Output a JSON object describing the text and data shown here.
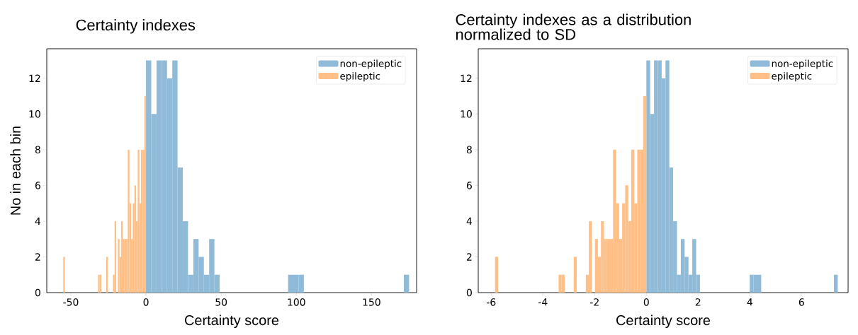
{
  "chart_data": [
    {
      "type": "histogram",
      "title": "Certainty indexes",
      "xlabel": "Certainty score",
      "ylabel": "No in each bin",
      "bins": [
        -55,
        -53.9,
        -31.9,
        -30.8,
        -29.7,
        -26.4,
        -25.3,
        -22,
        -20.9,
        -19.8,
        -18.7,
        -17.6,
        -16.5,
        -15.4,
        -14.3,
        -13.2,
        -12.1,
        -11,
        -9.9,
        -8.8,
        -7.7,
        -6.6,
        -5.5,
        -4.4,
        -3.3,
        -2.2,
        -1.1,
        0,
        3.5,
        7,
        10.5,
        14,
        17.5,
        21,
        24.5,
        28,
        31.5,
        35,
        38.5,
        42,
        45.5,
        49,
        94.5,
        98,
        101.5,
        105,
        171.5,
        175
      ],
      "series": [
        {
          "name": "non-epileptic",
          "color": "#8fbbd9",
          "values": [
            null,
            null,
            null,
            null,
            null,
            null,
            null,
            null,
            null,
            null,
            null,
            null,
            null,
            null,
            null,
            null,
            null,
            null,
            null,
            null,
            null,
            null,
            null,
            null,
            null,
            null,
            null,
            13,
            10,
            13,
            13,
            12,
            13,
            7,
            4,
            1,
            3,
            2,
            1,
            3,
            1,
            0,
            1,
            1,
            1,
            0,
            1
          ]
        },
        {
          "name": "epileptic",
          "color": "#ffbf86",
          "values": [
            2,
            0,
            1,
            1,
            0,
            2,
            0,
            1,
            4,
            0,
            3,
            2,
            4,
            3,
            3,
            3,
            8,
            5,
            3,
            5,
            6,
            4,
            8,
            5,
            8,
            8,
            11,
            null,
            null,
            null,
            null,
            null,
            null,
            null,
            null,
            null,
            null,
            null,
            null,
            null,
            null,
            null,
            null,
            null,
            null,
            null,
            null
          ]
        }
      ],
      "xlim": [
        -66,
        180
      ],
      "ylim": [
        0,
        13.65
      ],
      "xticks": [
        -50,
        0,
        50,
        100,
        150
      ],
      "yticks": [
        0,
        2,
        4,
        6,
        8,
        10,
        12
      ],
      "legend": "top right",
      "grid": false
    },
    {
      "type": "histogram",
      "title": "Certainty indexes as a distribution normalized to SD",
      "xlabel": "Certainty score",
      "bins": [
        -5.85,
        -5.733,
        -3.393,
        -3.276,
        -3.159,
        -2.808,
        -2.691,
        -2.34,
        -2.223,
        -2.106,
        -1.989,
        -1.872,
        -1.755,
        -1.638,
        -1.521,
        -1.404,
        -1.287,
        -1.17,
        -1.053,
        -0.936,
        -0.819,
        -0.702,
        -0.585,
        -0.468,
        -0.351,
        -0.234,
        -0.117,
        0,
        0.148,
        0.296,
        0.444,
        0.592,
        0.74,
        0.888,
        1.036,
        1.184,
        1.332,
        1.48,
        1.628,
        1.776,
        1.924,
        2.072,
        3.996,
        4.144,
        4.292,
        4.44,
        7.252,
        7.4
      ],
      "series": [
        {
          "name": "non-epileptic",
          "color": "#8fbbd9",
          "values": [
            null,
            null,
            null,
            null,
            null,
            null,
            null,
            null,
            null,
            null,
            null,
            null,
            null,
            null,
            null,
            null,
            null,
            null,
            null,
            null,
            null,
            null,
            null,
            null,
            null,
            null,
            null,
            13,
            10,
            13,
            13,
            12,
            13,
            7,
            4,
            1,
            3,
            2,
            1,
            3,
            1,
            0,
            1,
            1,
            1,
            0,
            1
          ]
        },
        {
          "name": "epileptic",
          "color": "#ffbf86",
          "values": [
            2,
            0,
            1,
            1,
            0,
            2,
            0,
            1,
            4,
            0,
            3,
            2,
            4,
            3,
            3,
            3,
            8,
            5,
            3,
            5,
            6,
            4,
            8,
            5,
            8,
            8,
            11,
            null,
            null,
            null,
            null,
            null,
            null,
            null,
            null,
            null,
            null,
            null,
            null,
            null,
            null,
            null,
            null,
            null,
            null,
            null,
            null
          ]
        }
      ],
      "xlim": [
        -6.5,
        7.8
      ],
      "ylim": [
        0,
        13.65
      ],
      "xticks": [
        -6,
        -4,
        -2,
        0,
        2,
        4,
        6
      ],
      "yticks": [
        0,
        2,
        4,
        6,
        8,
        10,
        12
      ],
      "legend": "top right",
      "grid": false
    }
  ]
}
